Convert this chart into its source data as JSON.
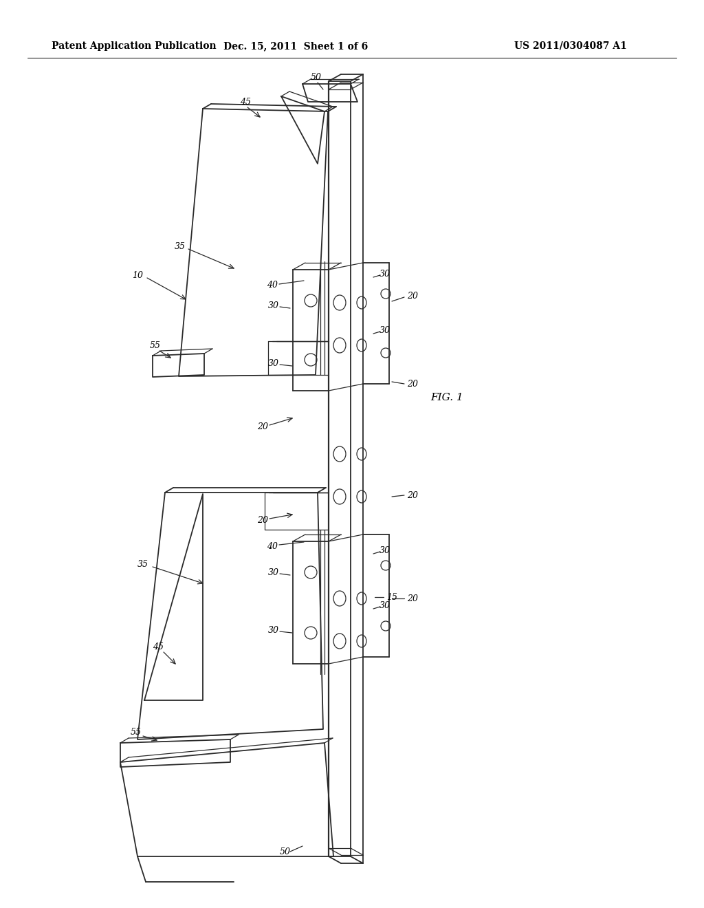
{
  "bg_color": "#ffffff",
  "header_left": "Patent Application Publication",
  "header_center": "Dec. 15, 2011  Sheet 1 of 6",
  "header_right": "US 2011/0304087 A1",
  "fig_label": "FIG. 1",
  "fig_width": 10.24,
  "fig_height": 13.2,
  "dpi": 100,
  "line_color": "#2a2a2a",
  "thin_lw": 0.9,
  "med_lw": 1.3,
  "thick_lw": 1.6
}
